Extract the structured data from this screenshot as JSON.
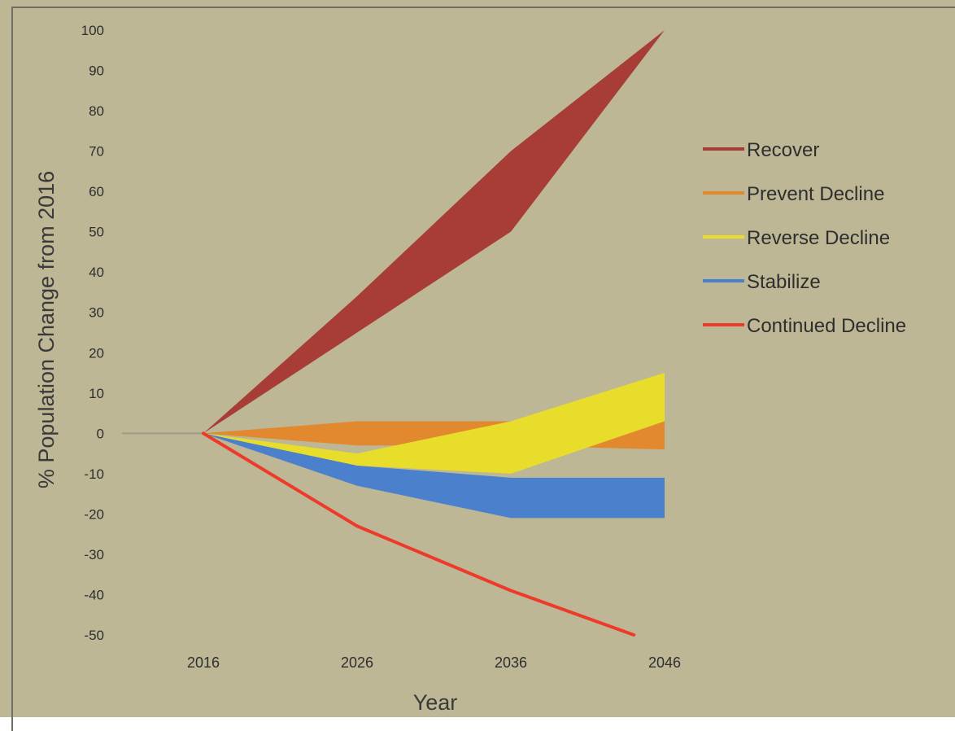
{
  "chart_data": {
    "type": "area",
    "title": "",
    "xlabel": "Year",
    "ylabel": "% Population Change from 2016",
    "x": [
      2016,
      2026,
      2036,
      2046
    ],
    "x_tick_labels": [
      "2016",
      "2026",
      "2036",
      "2046"
    ],
    "ylim": [
      -50,
      100
    ],
    "y_ticks": [
      100,
      90,
      80,
      70,
      60,
      50,
      40,
      30,
      20,
      10,
      0,
      -10,
      -20,
      -30,
      -40,
      -50
    ],
    "grid": false,
    "legend_position": "right",
    "series": [
      {
        "name": "Recover",
        "kind": "band",
        "color": "#a83c37",
        "upper": [
          0,
          34,
          70,
          100
        ],
        "lower": [
          0,
          25,
          50,
          100
        ]
      },
      {
        "name": "Prevent Decline",
        "kind": "band",
        "color": "#e2882f",
        "upper": [
          0,
          3,
          3,
          3
        ],
        "lower": [
          0,
          -3,
          -3,
          -4
        ]
      },
      {
        "name": "Reverse Decline",
        "kind": "band",
        "color": "#e8dd2a",
        "upper": [
          0,
          -5,
          3,
          15
        ],
        "lower": [
          0,
          -8,
          -10,
          3
        ]
      },
      {
        "name": "Stabilize",
        "kind": "band",
        "color": "#4a80cc",
        "upper": [
          0,
          -8,
          -11,
          -11
        ],
        "lower": [
          0,
          -13,
          -21,
          -21
        ]
      },
      {
        "name": "Continued Decline",
        "kind": "line",
        "color": "#ee3a2a",
        "x": [
          2016,
          2026,
          2036,
          2044
        ],
        "values": [
          0,
          -23,
          -39,
          -50
        ]
      }
    ]
  }
}
